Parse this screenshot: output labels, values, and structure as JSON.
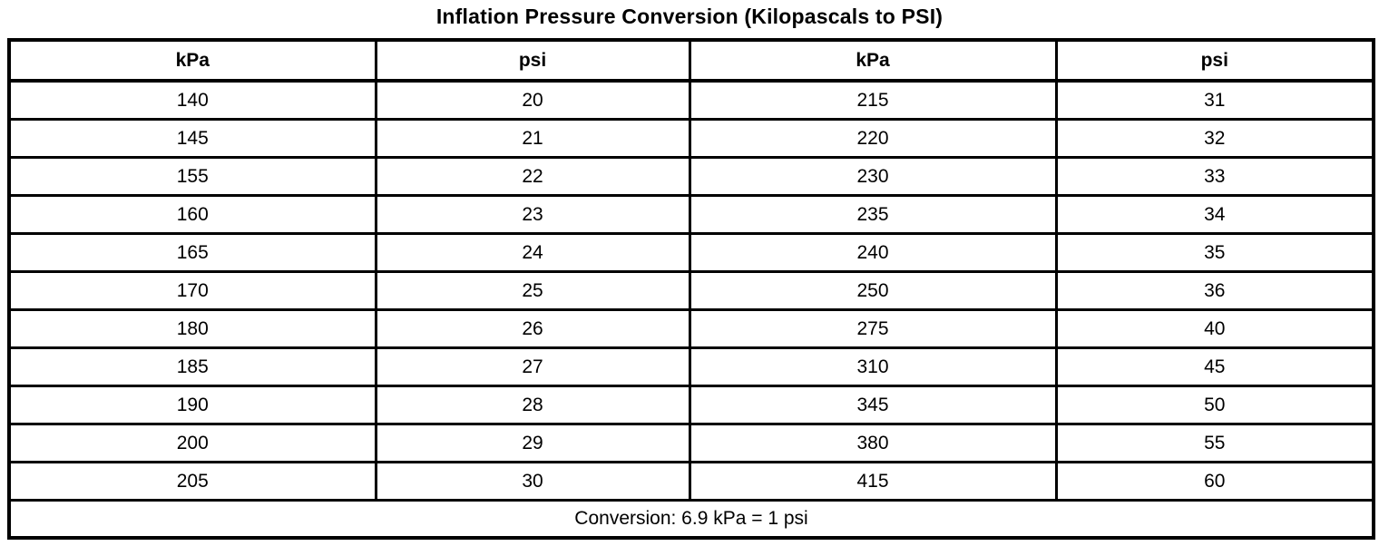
{
  "title": "Inflation Pressure Conversion (Kilopascals to PSI)",
  "table": {
    "headers": [
      "kPa",
      "psi",
      "kPa",
      "psi"
    ],
    "rows": [
      [
        "140",
        "20",
        "215",
        "31"
      ],
      [
        "145",
        "21",
        "220",
        "32"
      ],
      [
        "155",
        "22",
        "230",
        "33"
      ],
      [
        "160",
        "23",
        "235",
        "34"
      ],
      [
        "165",
        "24",
        "240",
        "35"
      ],
      [
        "170",
        "25",
        "250",
        "36"
      ],
      [
        "180",
        "26",
        "275",
        "40"
      ],
      [
        "185",
        "27",
        "310",
        "45"
      ],
      [
        "190",
        "28",
        "345",
        "50"
      ],
      [
        "200",
        "29",
        "380",
        "55"
      ],
      [
        "205",
        "30",
        "415",
        "60"
      ]
    ],
    "footer": "Conversion: 6.9 kPa = 1 psi"
  },
  "colors": {
    "text": "#000000",
    "border": "#000000",
    "background": "#ffffff"
  }
}
